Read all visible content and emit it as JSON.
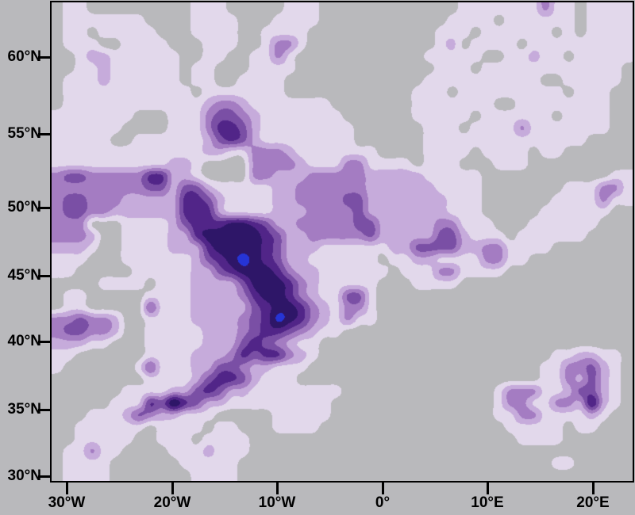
{
  "figure": {
    "background_color": "#b9b9bc",
    "frame_color": "#000000",
    "tick_color": "#000000",
    "label_color": "#000000"
  },
  "chart_data": {
    "type": "heatmap",
    "subtype": "filled-contour-map",
    "title": "",
    "xlabel": "",
    "ylabel": "",
    "legend": "none",
    "grid_lines": false,
    "x_axis": {
      "tick_labels": [
        "30°W",
        "20°W",
        "10°W",
        "0°",
        "10°E",
        "20°E"
      ]
    },
    "y_axis": {
      "tick_labels": [
        "60°N",
        "55°N",
        "50°N",
        "45°N",
        "40°N",
        "35°N",
        "30°N"
      ]
    },
    "lon_range_deg": [
      -31.4,
      23.9
    ],
    "lat_range_deg": [
      29.7,
      63.5
    ],
    "levels": {
      "count": 8,
      "colors": [
        "#b9b9bc",
        "#e2d8eb",
        "#c6abdb",
        "#a47cc2",
        "#7a4fa5",
        "#512588",
        "#2e1668",
        "#2634d6"
      ],
      "description": "shading intensity levels 0 (background) to 7 (maximum core)"
    },
    "grid": [
      "01100000000011100000111000000000000111111131101111",
      "01111111000011110001111000000000001111011111101111",
      "01101111100011110011110000000000011101111110101111",
      "01110011110001110013310000000000012011110111111111",
      "00122111111001100113100000000000111110011211011111",
      "00112111111011000111100000000000011101111111111110",
      "01112111111011001111000000000000111111111100111110",
      "01111111111101111111000000000001110111111111011100",
      "01111111111112332111111100000001111111001111111100",
      "11111110001113443211111110000001111101111110111100",
      "11111100001113554211111111000000111011113111111100",
      "11111001111112454211111111000000111111111111110000",
      "11111111111112211333211111110000111101111011000000",
      "11111111112210000333321113311110111000111000000000",
      "34433333552210000332223333322222111110000000000011",
      "33333333442442111112233333322222211110000000111331",
      "34433322222554211112233334422222221110000001111311",
      "34433222222555211112223333422222221110000011111100",
      "33300011112455566542233333442222233111000111111000",
      "33320011112256666654223333342222244211101111110000",
      "22210011112225666654222111111224444223311110000000",
      "11100011111124567654221111110112211113311000000000",
      "11000001111122456665322111111011133111100000000000",
      "00001111011122224666532111110001111000000000000000",
      "01100000111122223566532114410000000000000000000000",
      "01100000411122222456653213310000000000000000000000",
      "33433200111122223457653213110000000000000000000000",
      "34433200111112223455432110000000000000000000000000",
      "22211000111112224543211000000000000000000000000000",
      "11000000111122235455321000000000000000000001122110",
      "10000001411122443221110000000000000000000011334210",
      "00000000111124554211100000000000000000000011324210",
      "00000011112245422111111110000000000000133311244210",
      "00000111547542211111111100000000000000133113326210",
      "00011124322111000001111100000000000000113311112100",
      "00111111011110110001111000000000000000011111011000",
      "00111110011101111000000000000000000000001111000000",
      "01131100001112111000000000000000000000000000000000",
      "01111000000111110000000000000000000000000001100000",
      "01111000000011110000000000000000000000000000000000"
    ]
  }
}
